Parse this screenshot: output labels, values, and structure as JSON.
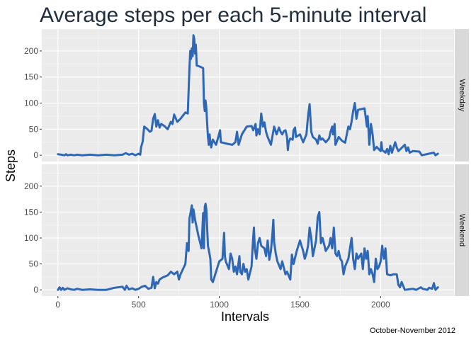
{
  "chart_data": {
    "type": "line",
    "title": "Average steps per each 5-minute interval",
    "xlabel": "Intervals",
    "ylabel": "Steps",
    "caption": "October-November 2012",
    "xlim": [
      -100,
      2455
    ],
    "ylim": [
      -12,
      242
    ],
    "x_ticks": [
      0,
      500,
      1000,
      1500,
      2000
    ],
    "y_ticks": [
      0,
      50,
      100,
      150,
      200
    ],
    "grid": true,
    "line_color": "#2E67B5",
    "panels": [
      {
        "name": "Weekday",
        "points": [
          [
            0,
            2
          ],
          [
            20,
            1
          ],
          [
            40,
            0
          ],
          [
            50,
            2
          ],
          [
            60,
            0
          ],
          [
            80,
            1
          ],
          [
            100,
            0
          ],
          [
            120,
            1
          ],
          [
            150,
            0
          ],
          [
            200,
            1
          ],
          [
            250,
            0
          ],
          [
            300,
            1
          ],
          [
            350,
            0
          ],
          [
            400,
            1
          ],
          [
            420,
            4
          ],
          [
            440,
            1
          ],
          [
            460,
            3
          ],
          [
            480,
            0
          ],
          [
            500,
            3
          ],
          [
            510,
            1
          ],
          [
            515,
            15
          ],
          [
            525,
            26
          ],
          [
            535,
            55
          ],
          [
            555,
            50
          ],
          [
            570,
            45
          ],
          [
            580,
            47
          ],
          [
            590,
            70
          ],
          [
            600,
            79
          ],
          [
            610,
            55
          ],
          [
            620,
            67
          ],
          [
            630,
            53
          ],
          [
            640,
            60
          ],
          [
            660,
            56
          ],
          [
            680,
            50
          ],
          [
            700,
            64
          ],
          [
            710,
            60
          ],
          [
            720,
            78
          ],
          [
            740,
            64
          ],
          [
            760,
            70
          ],
          [
            790,
            82
          ],
          [
            805,
            80
          ],
          [
            815,
            165
          ],
          [
            820,
            200
          ],
          [
            825,
            185
          ],
          [
            830,
            205
          ],
          [
            835,
            190
          ],
          [
            840,
            230
          ],
          [
            845,
            222
          ],
          [
            850,
            195
          ],
          [
            855,
            212
          ],
          [
            860,
            172
          ],
          [
            880,
            170
          ],
          [
            900,
            167
          ],
          [
            905,
            100
          ],
          [
            910,
            85
          ],
          [
            915,
            105
          ],
          [
            920,
            90
          ],
          [
            925,
            60
          ],
          [
            930,
            35
          ],
          [
            935,
            20
          ],
          [
            940,
            40
          ],
          [
            945,
            25
          ],
          [
            950,
            15
          ],
          [
            960,
            30
          ],
          [
            980,
            20
          ],
          [
            995,
            36
          ],
          [
            1005,
            48
          ],
          [
            1010,
            25
          ],
          [
            1050,
            22
          ],
          [
            1080,
            20
          ],
          [
            1100,
            25
          ],
          [
            1110,
            45
          ],
          [
            1120,
            20
          ],
          [
            1140,
            40
          ],
          [
            1170,
            55
          ],
          [
            1200,
            56
          ],
          [
            1210,
            48
          ],
          [
            1225,
            60
          ],
          [
            1230,
            38
          ],
          [
            1240,
            50
          ],
          [
            1250,
            40
          ],
          [
            1260,
            80
          ],
          [
            1270,
            55
          ],
          [
            1280,
            63
          ],
          [
            1290,
            45
          ],
          [
            1300,
            35
          ],
          [
            1320,
            20
          ],
          [
            1340,
            55
          ],
          [
            1355,
            40
          ],
          [
            1370,
            53
          ],
          [
            1380,
            45
          ],
          [
            1390,
            40
          ],
          [
            1400,
            46
          ],
          [
            1410,
            48
          ],
          [
            1420,
            35
          ],
          [
            1425,
            10
          ],
          [
            1430,
            25
          ],
          [
            1440,
            32
          ],
          [
            1455,
            30
          ],
          [
            1460,
            48
          ],
          [
            1470,
            53
          ],
          [
            1475,
            35
          ],
          [
            1500,
            40
          ],
          [
            1520,
            25
          ],
          [
            1540,
            40
          ],
          [
            1550,
            75
          ],
          [
            1560,
            98
          ],
          [
            1570,
            45
          ],
          [
            1580,
            35
          ],
          [
            1600,
            30
          ],
          [
            1610,
            22
          ],
          [
            1620,
            38
          ],
          [
            1630,
            30
          ],
          [
            1640,
            32
          ],
          [
            1660,
            25
          ],
          [
            1680,
            32
          ],
          [
            1690,
            45
          ],
          [
            1700,
            55
          ],
          [
            1705,
            40
          ],
          [
            1715,
            60
          ],
          [
            1720,
            20
          ],
          [
            1740,
            35
          ],
          [
            1760,
            28
          ],
          [
            1780,
            24
          ],
          [
            1800,
            55
          ],
          [
            1810,
            50
          ],
          [
            1820,
            65
          ],
          [
            1830,
            85
          ],
          [
            1840,
            100
          ],
          [
            1850,
            70
          ],
          [
            1860,
            87
          ],
          [
            1900,
            90
          ],
          [
            1915,
            55
          ],
          [
            1920,
            75
          ],
          [
            1930,
            20
          ],
          [
            1940,
            60
          ],
          [
            1950,
            40
          ],
          [
            1960,
            10
          ],
          [
            1975,
            16
          ],
          [
            2000,
            8
          ],
          [
            2005,
            25
          ],
          [
            2010,
            10
          ],
          [
            2030,
            5
          ],
          [
            2040,
            12
          ],
          [
            2050,
            2
          ],
          [
            2060,
            18
          ],
          [
            2070,
            5
          ],
          [
            2090,
            25
          ],
          [
            2100,
            15
          ],
          [
            2110,
            8
          ],
          [
            2150,
            20
          ],
          [
            2160,
            8
          ],
          [
            2170,
            15
          ],
          [
            2180,
            5
          ],
          [
            2200,
            8
          ],
          [
            2240,
            7
          ],
          [
            2255,
            0
          ],
          [
            2300,
            3
          ],
          [
            2330,
            5
          ],
          [
            2340,
            0
          ],
          [
            2355,
            3
          ]
        ]
      },
      {
        "name": "Weekend",
        "points": [
          [
            0,
            0
          ],
          [
            10,
            5
          ],
          [
            20,
            0
          ],
          [
            30,
            4
          ],
          [
            40,
            0
          ],
          [
            60,
            3
          ],
          [
            80,
            1
          ],
          [
            100,
            0
          ],
          [
            120,
            2
          ],
          [
            150,
            0
          ],
          [
            200,
            1
          ],
          [
            250,
            0
          ],
          [
            300,
            0
          ],
          [
            350,
            4
          ],
          [
            400,
            6
          ],
          [
            415,
            0
          ],
          [
            425,
            8
          ],
          [
            440,
            1
          ],
          [
            460,
            3
          ],
          [
            480,
            0
          ],
          [
            500,
            2
          ],
          [
            520,
            6
          ],
          [
            540,
            8
          ],
          [
            550,
            5
          ],
          [
            560,
            2
          ],
          [
            580,
            4
          ],
          [
            590,
            25
          ],
          [
            600,
            3
          ],
          [
            610,
            15
          ],
          [
            620,
            12
          ],
          [
            630,
            20
          ],
          [
            650,
            24
          ],
          [
            680,
            28
          ],
          [
            700,
            35
          ],
          [
            720,
            30
          ],
          [
            740,
            35
          ],
          [
            750,
            20
          ],
          [
            760,
            30
          ],
          [
            790,
            50
          ],
          [
            800,
            90
          ],
          [
            810,
            75
          ],
          [
            815,
            138
          ],
          [
            820,
            145
          ],
          [
            830,
            163
          ],
          [
            835,
            130
          ],
          [
            840,
            155
          ],
          [
            850,
            135
          ],
          [
            870,
            105
          ],
          [
            890,
            80
          ],
          [
            900,
            148
          ],
          [
            905,
            80
          ],
          [
            910,
            160
          ],
          [
            915,
            166
          ],
          [
            920,
            155
          ],
          [
            930,
            85
          ],
          [
            945,
            60
          ],
          [
            950,
            20
          ],
          [
            960,
            15
          ],
          [
            975,
            30
          ],
          [
            1000,
            55
          ],
          [
            1020,
            60
          ],
          [
            1030,
            110
          ],
          [
            1035,
            65
          ],
          [
            1040,
            55
          ],
          [
            1060,
            40
          ],
          [
            1070,
            70
          ],
          [
            1080,
            60
          ],
          [
            1090,
            35
          ],
          [
            1100,
            45
          ],
          [
            1110,
            30
          ],
          [
            1125,
            65
          ],
          [
            1130,
            35
          ],
          [
            1140,
            30
          ],
          [
            1150,
            50
          ],
          [
            1160,
            35
          ],
          [
            1170,
            40
          ],
          [
            1180,
            20
          ],
          [
            1200,
            45
          ],
          [
            1210,
            100
          ],
          [
            1215,
            120
          ],
          [
            1220,
            80
          ],
          [
            1230,
            60
          ],
          [
            1240,
            90
          ],
          [
            1250,
            100
          ],
          [
            1260,
            85
          ],
          [
            1280,
            80
          ],
          [
            1290,
            65
          ],
          [
            1300,
            95
          ],
          [
            1310,
            58
          ],
          [
            1320,
            75
          ],
          [
            1330,
            110
          ],
          [
            1335,
            135
          ],
          [
            1340,
            92
          ],
          [
            1350,
            70
          ],
          [
            1360,
            55
          ],
          [
            1380,
            40
          ],
          [
            1390,
            55
          ],
          [
            1410,
            30
          ],
          [
            1420,
            35
          ],
          [
            1440,
            20
          ],
          [
            1450,
            68
          ],
          [
            1460,
            50
          ],
          [
            1480,
            75
          ],
          [
            1500,
            95
          ],
          [
            1510,
            85
          ],
          [
            1520,
            75
          ],
          [
            1530,
            60
          ],
          [
            1540,
            70
          ],
          [
            1550,
            85
          ],
          [
            1560,
            120
          ],
          [
            1570,
            100
          ],
          [
            1580,
            65
          ],
          [
            1600,
            95
          ],
          [
            1610,
            140
          ],
          [
            1620,
            150
          ],
          [
            1630,
            90
          ],
          [
            1640,
            100
          ],
          [
            1660,
            75
          ],
          [
            1680,
            85
          ],
          [
            1690,
            100
          ],
          [
            1700,
            80
          ],
          [
            1710,
            120
          ],
          [
            1720,
            70
          ],
          [
            1730,
            65
          ],
          [
            1740,
            75
          ],
          [
            1750,
            60
          ],
          [
            1760,
            55
          ],
          [
            1770,
            30
          ],
          [
            1780,
            45
          ],
          [
            1800,
            60
          ],
          [
            1810,
            80
          ],
          [
            1820,
            100
          ],
          [
            1830,
            60
          ],
          [
            1840,
            40
          ],
          [
            1850,
            70
          ],
          [
            1860,
            60
          ],
          [
            1880,
            70
          ],
          [
            1890,
            40
          ],
          [
            1900,
            80
          ],
          [
            1910,
            60
          ],
          [
            1920,
            75
          ],
          [
            1930,
            30
          ],
          [
            1940,
            40
          ],
          [
            1950,
            30
          ],
          [
            1960,
            15
          ],
          [
            1970,
            60
          ],
          [
            1980,
            40
          ],
          [
            1990,
            45
          ],
          [
            2000,
            55
          ],
          [
            2010,
            85
          ],
          [
            2020,
            60
          ],
          [
            2030,
            80
          ],
          [
            2040,
            30
          ],
          [
            2060,
            28
          ],
          [
            2080,
            30
          ],
          [
            2100,
            30
          ],
          [
            2110,
            10
          ],
          [
            2120,
            5
          ],
          [
            2130,
            15
          ],
          [
            2140,
            8
          ],
          [
            2150,
            0
          ],
          [
            2200,
            2
          ],
          [
            2220,
            0
          ],
          [
            2250,
            5
          ],
          [
            2260,
            2
          ],
          [
            2290,
            0
          ],
          [
            2300,
            4
          ],
          [
            2320,
            2
          ],
          [
            2330,
            13
          ],
          [
            2340,
            0
          ],
          [
            2355,
            5
          ]
        ]
      }
    ]
  }
}
